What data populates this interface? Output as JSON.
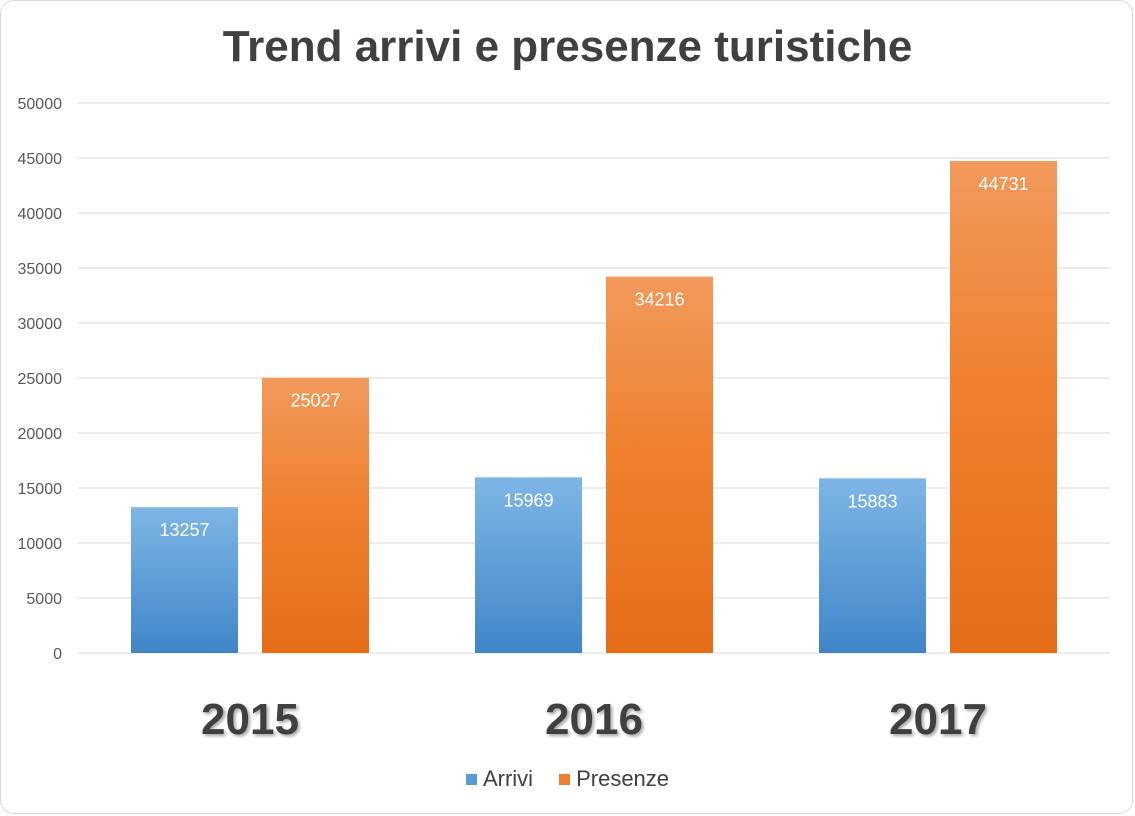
{
  "chart_data": {
    "type": "bar",
    "title": "Trend arrivi e presenze turistiche",
    "categories": [
      "2015",
      "2016",
      "2017"
    ],
    "series": [
      {
        "name": "Arrivi",
        "values": [
          13257,
          15969,
          15883
        ],
        "color": "#5b9bd5"
      },
      {
        "name": "Presenze",
        "values": [
          25027,
          34216,
          44731
        ],
        "color": "#ed7d31"
      }
    ],
    "data_labels": [
      [
        "13257",
        "15969",
        "15883"
      ],
      [
        "25027",
        "34216",
        "44731"
      ]
    ],
    "y_ticks": [
      "0",
      "5000",
      "10000",
      "15000",
      "20000",
      "25000",
      "30000",
      "35000",
      "40000",
      "45000",
      "50000"
    ],
    "ylim": [
      0,
      50000
    ],
    "xlabel": "",
    "ylabel": "",
    "grid": true,
    "legend_position": "bottom"
  }
}
